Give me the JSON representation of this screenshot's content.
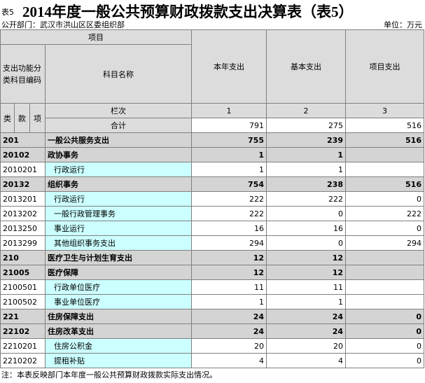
{
  "header": {
    "sheet_label": "表5",
    "title": "2014年度一般公共预算财政拨款支出决算表（表5）",
    "department": "公开部门：武汉市洪山区区委组织部",
    "unit": "单位：万元"
  },
  "table": {
    "project_label": "项目",
    "code_group_label": "支出功能分类科目编码",
    "name_label": "科目名称",
    "code_parts": [
      "类",
      "款",
      "项"
    ],
    "columns": [
      "本年支出",
      "基本支出",
      "项目支出"
    ],
    "index_label": "栏次",
    "column_numbers": [
      1,
      2,
      3
    ],
    "total_label": "合计",
    "totals": [
      791,
      275,
      516
    ],
    "rows": [
      {
        "code": "201",
        "name": "一般公共服务支出",
        "values": [
          755,
          239,
          516
        ]
      },
      {
        "code": "20102",
        "name": "政协事务",
        "values": [
          1,
          1,
          null
        ]
      },
      {
        "code": "2010201",
        "name": "行政运行",
        "values": [
          1,
          1,
          null
        ]
      },
      {
        "code": "20132",
        "name": "组织事务",
        "values": [
          754,
          238,
          516
        ]
      },
      {
        "code": "2013201",
        "name": "行政运行",
        "values": [
          222,
          222,
          0
        ]
      },
      {
        "code": "2013202",
        "name": "一般行政管理事务",
        "values": [
          222,
          0,
          222
        ]
      },
      {
        "code": "2013250",
        "name": "事业运行",
        "values": [
          16,
          16,
          0
        ]
      },
      {
        "code": "2013299",
        "name": "其他组织事务支出",
        "values": [
          294,
          0,
          294
        ]
      },
      {
        "code": "210",
        "name": "医疗卫生与计划生育支出",
        "values": [
          12,
          12,
          null
        ]
      },
      {
        "code": "21005",
        "name": "医疗保障",
        "values": [
          12,
          12,
          null
        ]
      },
      {
        "code": "2100501",
        "name": "行政单位医疗",
        "values": [
          11,
          11,
          null
        ]
      },
      {
        "code": "2100502",
        "name": "事业单位医疗",
        "values": [
          1,
          1,
          null
        ]
      },
      {
        "code": "221",
        "name": "住房保障支出",
        "values": [
          24,
          24,
          0
        ]
      },
      {
        "code": "22102",
        "name": "住房改革支出",
        "values": [
          24,
          24,
          0
        ]
      },
      {
        "code": "2210201",
        "name": "住房公积金",
        "values": [
          20,
          20,
          0
        ]
      },
      {
        "code": "2210202",
        "name": "提租补贴",
        "values": [
          4,
          4,
          0
        ]
      }
    ]
  },
  "footer": {
    "note": "注：本表反映部门本年度一般公共预算财政拨款实际支出情况。"
  }
}
